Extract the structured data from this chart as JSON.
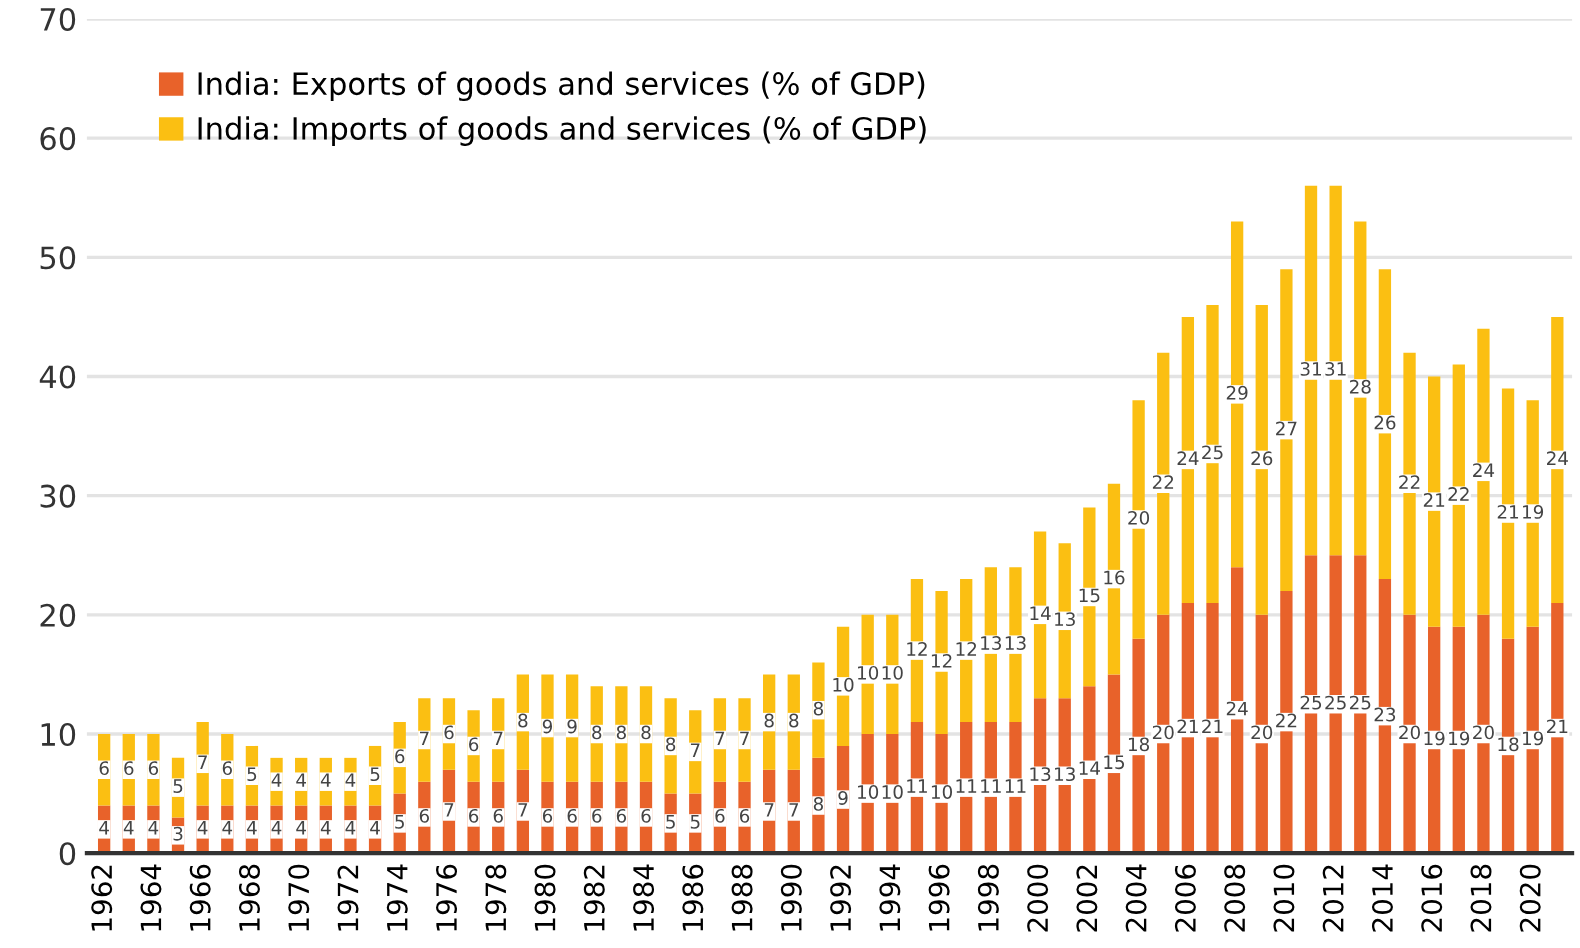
{
  "chart_data": {
    "type": "bar",
    "stacked": true,
    "categories": [
      "1962",
      null,
      "1964",
      null,
      "1966",
      null,
      "1968",
      null,
      "1970",
      null,
      "1972",
      null,
      "1974",
      null,
      "1976",
      null,
      "1978",
      null,
      "1980",
      null,
      "1982",
      null,
      "1984",
      null,
      "1986",
      null,
      "1988",
      null,
      "1990",
      null,
      "1992",
      null,
      "1994",
      null,
      "1996",
      null,
      "1998",
      null,
      "2000",
      null,
      "2002",
      null,
      "2004",
      null,
      "2006",
      null,
      "2008",
      null,
      "2010",
      null,
      "2012",
      null,
      "2014",
      null,
      "2016",
      null,
      "2018",
      null,
      "2020",
      null
    ],
    "series": [
      {
        "name": "India: Exports of goods and services (% of GDP)",
        "color": "#e8622a",
        "values": [
          4,
          4,
          4,
          3,
          4,
          4,
          4,
          4,
          4,
          4,
          4,
          4,
          5,
          6,
          7,
          6,
          6,
          7,
          6,
          6,
          6,
          6,
          6,
          5,
          5,
          6,
          6,
          7,
          7,
          8,
          9,
          10,
          10,
          11,
          10,
          11,
          11,
          11,
          13,
          13,
          14,
          15,
          18,
          20,
          21,
          21,
          24,
          20,
          22,
          25,
          25,
          25,
          23,
          20,
          19,
          19,
          20,
          18,
          19,
          21
        ]
      },
      {
        "name": "India: Imports of goods and services (% of GDP)",
        "color": "#fbbf12",
        "values": [
          6,
          6,
          6,
          5,
          7,
          6,
          5,
          4,
          4,
          4,
          4,
          5,
          6,
          7,
          6,
          6,
          7,
          8,
          9,
          9,
          8,
          8,
          8,
          8,
          7,
          7,
          7,
          8,
          8,
          8,
          10,
          10,
          10,
          12,
          12,
          12,
          13,
          13,
          14,
          13,
          15,
          16,
          20,
          22,
          24,
          25,
          29,
          26,
          27,
          31,
          31,
          28,
          26,
          22,
          21,
          22,
          24,
          21,
          19,
          24
        ]
      }
    ],
    "ylim": [
      0,
      70
    ],
    "yticks": [
      0,
      10,
      20,
      30,
      40,
      50,
      60,
      70
    ],
    "grid": "y",
    "legend": "top left",
    "data_labels": true
  }
}
